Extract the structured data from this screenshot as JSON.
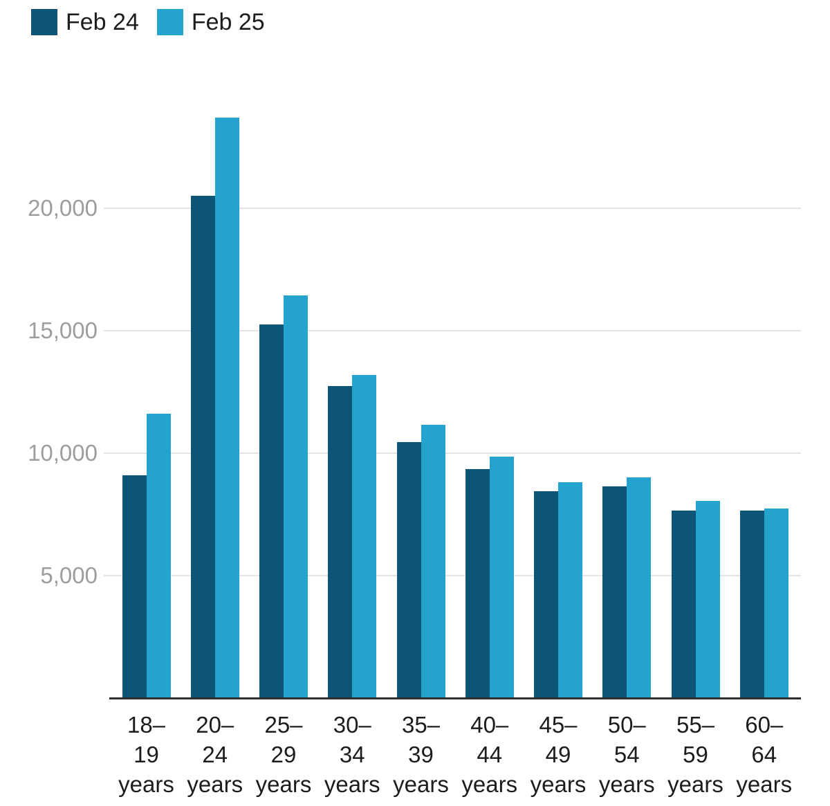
{
  "colors": {
    "series1": "#0d5577",
    "series2": "#23a3cd",
    "gridline": "#e4e4e4",
    "axis": "#2e2e2e",
    "ytick_label": "#9d9d9d",
    "xtick_label": "#1c1c1c",
    "background": "#ffffff"
  },
  "legend": {
    "items": [
      {
        "label": "Feb 24",
        "color_key": "series1"
      },
      {
        "label": "Feb 25",
        "color_key": "series2"
      }
    ]
  },
  "chart_data": {
    "type": "bar",
    "title": "",
    "xlabel": "",
    "ylabel": "",
    "categories": [
      "18–19 years",
      "20–24 years",
      "25–29 years",
      "30–34 years",
      "35–39 years",
      "40–44 years",
      "45–49 years",
      "50–54 years",
      "55–59 years",
      "60–64 years"
    ],
    "category_label_lines": [
      [
        "18–",
        "19",
        "years"
      ],
      [
        "20–",
        "24",
        "years"
      ],
      [
        "25–",
        "29",
        "years"
      ],
      [
        "30–",
        "34",
        "years"
      ],
      [
        "35–",
        "39",
        "years"
      ],
      [
        "40–",
        "44",
        "years"
      ],
      [
        "45–",
        "49",
        "years"
      ],
      [
        "50–",
        "54",
        "years"
      ],
      [
        "55–",
        "59",
        "years"
      ],
      [
        "60–",
        "64",
        "years"
      ]
    ],
    "series": [
      {
        "name": "Feb 24",
        "values": [
          9100,
          20500,
          15250,
          12750,
          10450,
          9350,
          8450,
          8650,
          7650,
          7650
        ]
      },
      {
        "name": "Feb 25",
        "values": [
          11600,
          23700,
          16450,
          13200,
          11150,
          9850,
          8800,
          9000,
          8050,
          7750
        ]
      }
    ],
    "ylim": [
      0,
      24800
    ],
    "yticks": [
      {
        "value": 5000,
        "label": "5,000"
      },
      {
        "value": 10000,
        "label": "10,000"
      },
      {
        "value": 15000,
        "label": "15,000"
      },
      {
        "value": 20000,
        "label": "20,000"
      }
    ],
    "grid": "horizontal",
    "legend_position": "top-left"
  }
}
